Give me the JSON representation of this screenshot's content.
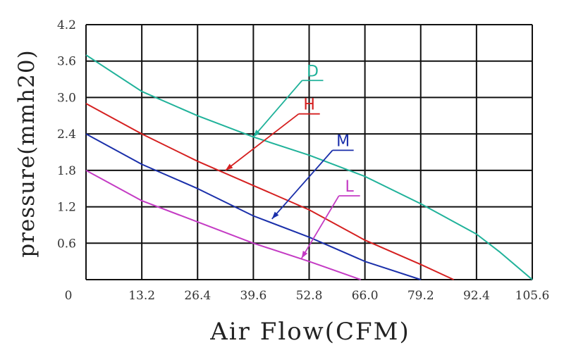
{
  "chart_data": {
    "type": "line",
    "title": "",
    "xlabel": "Air Flow(CFM)",
    "ylabel": "pressure(mmh20)",
    "xlim": [
      0,
      105.6
    ],
    "ylim": [
      0,
      4.2
    ],
    "x_ticks": [
      "13.2",
      "26.4",
      "39.6",
      "52.8",
      "66.0",
      "79.2",
      "92.4",
      "105.6"
    ],
    "y_ticks": [
      "0.6",
      "1.2",
      "1.8",
      "2.4",
      "3.0",
      "3.6",
      "4.2"
    ],
    "origin_label": "0",
    "grid": true,
    "series": [
      {
        "name": "D",
        "color": "#20b29a",
        "x": [
          0,
          13.2,
          26.4,
          39.6,
          52.8,
          66.0,
          79.2,
          92.4,
          98.0,
          105.6
        ],
        "y": [
          3.7,
          3.1,
          2.7,
          2.35,
          2.05,
          1.7,
          1.25,
          0.75,
          0.45,
          0.0
        ],
        "label_at": [
          52.8,
          3.35
        ],
        "arrow_to": [
          39.6,
          2.35
        ]
      },
      {
        "name": "H",
        "color": "#d52020",
        "x": [
          0,
          13.2,
          26.4,
          39.6,
          52.8,
          66.0,
          79.2,
          87.0
        ],
        "y": [
          2.9,
          2.4,
          1.95,
          1.55,
          1.15,
          0.65,
          0.25,
          0.0
        ],
        "label_at": [
          52.0,
          2.8
        ],
        "arrow_to": [
          33.0,
          1.8
        ]
      },
      {
        "name": "M",
        "color": "#1a2faa",
        "x": [
          0,
          13.2,
          26.4,
          39.6,
          52.8,
          66.0,
          79.2
        ],
        "y": [
          2.4,
          1.9,
          1.5,
          1.05,
          0.7,
          0.3,
          0.0
        ],
        "label_at": [
          60.0,
          2.2
        ],
        "arrow_to": [
          44.0,
          1.0
        ]
      },
      {
        "name": "L",
        "color": "#c43bc4",
        "x": [
          0,
          13.2,
          26.4,
          39.6,
          52.8,
          65.0
        ],
        "y": [
          1.8,
          1.3,
          0.95,
          0.6,
          0.3,
          0.0
        ],
        "label_at": [
          61.5,
          1.45
        ],
        "arrow_to": [
          51.0,
          0.35
        ]
      }
    ]
  }
}
